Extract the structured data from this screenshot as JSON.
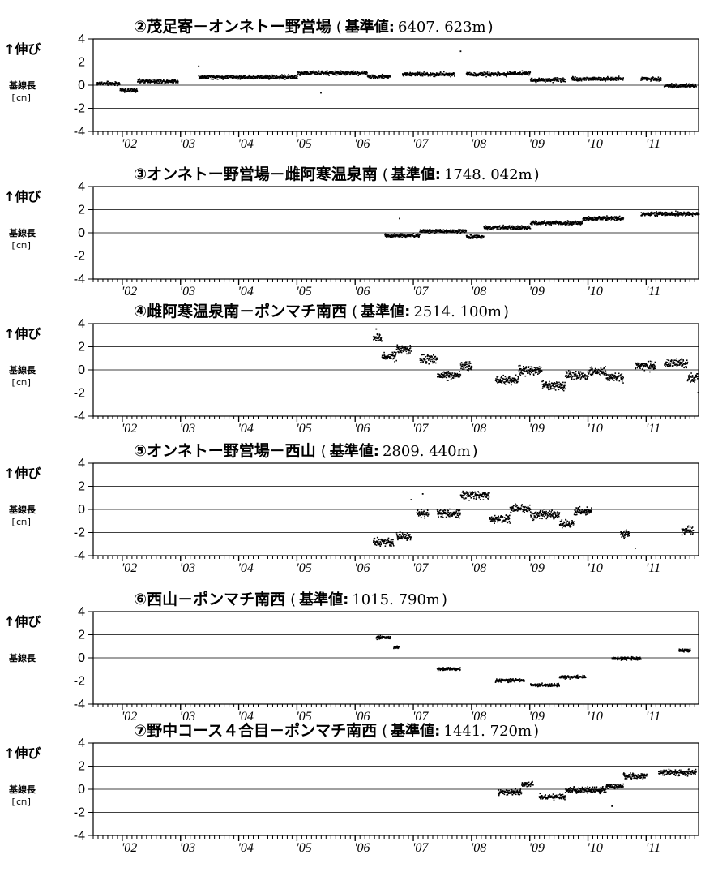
{
  "figure": {
    "y_label_top": "↑伸び",
    "y_label_mid": "基線長",
    "y_label_unit": "[cm]"
  },
  "chart_data": [
    {
      "type": "scatter",
      "title": "②茂足寄－オンネトー野営場",
      "reference_label": "基準値:",
      "reference_value": "6407. 623m",
      "show_unit": true,
      "xlim": [
        2001.5,
        2011.9
      ],
      "ylim": [
        -4,
        4
      ],
      "yticks": [
        4,
        2,
        0,
        -2,
        -4
      ],
      "xticklabels": [
        "'02",
        "'03",
        "'04",
        "'05",
        "'06",
        "'07",
        "'08",
        "'09",
        "'10",
        "'11"
      ],
      "grid": "horizontal",
      "series": [
        {
          "segments": [
            [
              2001.55,
              2001.95,
              0.2
            ],
            [
              2001.95,
              2002.25,
              -0.4
            ],
            [
              2002.25,
              2002.95,
              0.4
            ],
            [
              2003.3,
              2005.0,
              0.75
            ],
            [
              2005.0,
              2006.2,
              1.1
            ],
            [
              2006.2,
              2006.6,
              0.8
            ],
            [
              2006.8,
              2007.7,
              1.0
            ],
            [
              2007.9,
              2008.6,
              1.0
            ],
            [
              2008.6,
              2009.0,
              1.1
            ],
            [
              2009.0,
              2009.6,
              0.5
            ],
            [
              2009.7,
              2010.6,
              0.6
            ],
            [
              2010.9,
              2011.25,
              0.6
            ],
            [
              2011.3,
              2011.85,
              0.0
            ]
          ],
          "spread": 0.25,
          "outliers": [
            [
              2007.8,
              3.0
            ],
            [
              2003.3,
              1.7
            ],
            [
              2005.4,
              -0.6
            ]
          ]
        }
      ]
    },
    {
      "type": "scatter",
      "title": "③オンネトー野営場－雌阿寒温泉南",
      "reference_label": "基準値:",
      "reference_value": "1748. 042m",
      "show_unit": true,
      "xlim": [
        2001.5,
        2011.9
      ],
      "ylim": [
        -4,
        4
      ],
      "yticks": [
        4,
        2,
        0,
        -2,
        -4
      ],
      "xticklabels": [
        "'02",
        "'03",
        "'04",
        "'05",
        "'06",
        "'07",
        "'08",
        "'09",
        "'10",
        "'11"
      ],
      "grid": "horizontal",
      "series": [
        {
          "segments": [
            [
              2006.5,
              2007.1,
              -0.2
            ],
            [
              2007.1,
              2007.9,
              0.2
            ],
            [
              2007.9,
              2008.2,
              -0.3
            ],
            [
              2008.2,
              2009.0,
              0.5
            ],
            [
              2009.0,
              2009.9,
              0.9
            ],
            [
              2009.9,
              2010.6,
              1.3
            ],
            [
              2010.9,
              2011.9,
              1.7
            ]
          ],
          "spread": 0.25,
          "outliers": [
            [
              2006.75,
              1.3
            ]
          ]
        }
      ]
    },
    {
      "type": "scatter",
      "title": "④雌阿寒温泉南－ポンマチ南西",
      "reference_label": "基準値:",
      "reference_value": "2514. 100m",
      "show_unit": true,
      "xlim": [
        2001.5,
        2011.9
      ],
      "ylim": [
        -4,
        4
      ],
      "yticks": [
        4,
        2,
        0,
        -2,
        -4
      ],
      "xticklabels": [
        "'02",
        "'03",
        "'04",
        "'05",
        "'06",
        "'07",
        "'08",
        "'09",
        "'10",
        "'11"
      ],
      "grid": "horizontal",
      "series": [
        {
          "segments": [
            [
              2006.3,
              2006.45,
              2.8
            ],
            [
              2006.45,
              2006.7,
              1.2
            ],
            [
              2006.7,
              2006.95,
              1.8
            ],
            [
              2007.1,
              2007.4,
              1.0
            ],
            [
              2007.4,
              2007.8,
              -0.4
            ],
            [
              2007.8,
              2008.0,
              0.4
            ],
            [
              2008.4,
              2008.8,
              -0.8
            ],
            [
              2008.8,
              2009.2,
              0.0
            ],
            [
              2009.2,
              2009.6,
              -1.3
            ],
            [
              2009.6,
              2010.0,
              -0.4
            ],
            [
              2010.0,
              2010.3,
              -0.1
            ],
            [
              2010.3,
              2010.6,
              -0.6
            ],
            [
              2010.8,
              2011.15,
              0.4
            ],
            [
              2011.3,
              2011.7,
              0.6
            ],
            [
              2011.7,
              2011.88,
              -0.6
            ]
          ],
          "spread": 0.55,
          "outliers": [
            [
              2006.35,
              3.6
            ],
            [
              2011.88,
              -1.9
            ]
          ]
        }
      ]
    },
    {
      "type": "scatter",
      "title": "⑤オンネトー野営場－西山",
      "reference_label": "基準値:",
      "reference_value": "2809. 440m",
      "show_unit": true,
      "xlim": [
        2001.5,
        2011.9
      ],
      "ylim": [
        -4,
        4
      ],
      "yticks": [
        4,
        2,
        0,
        -2,
        -4
      ],
      "xticklabels": [
        "'02",
        "'03",
        "'04",
        "'05",
        "'06",
        "'07",
        "'08",
        "'09",
        "'10",
        "'11"
      ],
      "grid": "horizontal",
      "series": [
        {
          "segments": [
            [
              2006.3,
              2006.65,
              -2.8
            ],
            [
              2006.7,
              2006.95,
              -2.3
            ],
            [
              2007.05,
              2007.25,
              -0.3
            ],
            [
              2007.4,
              2007.8,
              -0.3
            ],
            [
              2007.8,
              2008.3,
              1.3
            ],
            [
              2008.3,
              2008.65,
              -0.8
            ],
            [
              2008.65,
              2009.0,
              0.1
            ],
            [
              2009.0,
              2009.5,
              -0.4
            ],
            [
              2009.5,
              2009.75,
              -1.2
            ],
            [
              2009.75,
              2010.05,
              -0.1
            ],
            [
              2010.55,
              2010.7,
              -2.1
            ],
            [
              2011.6,
              2011.8,
              -1.8
            ]
          ],
          "spread": 0.5,
          "outliers": [
            [
              2006.95,
              0.9
            ],
            [
              2007.15,
              1.4
            ],
            [
              2010.8,
              -3.3
            ]
          ]
        }
      ]
    },
    {
      "type": "scatter",
      "title": "⑥西山－ポンマチ南西",
      "reference_label": "基準値:",
      "reference_value": "1015. 790m",
      "show_unit": false,
      "xlim": [
        2001.5,
        2011.9
      ],
      "ylim": [
        -4,
        4
      ],
      "yticks": [
        4,
        2,
        0,
        -2,
        -4
      ],
      "xticklabels": [
        "'02",
        "'03",
        "'04",
        "'05",
        "'06",
        "'07",
        "'08",
        "'09",
        "'10",
        "'11"
      ],
      "grid": "horizontal",
      "series": [
        {
          "segments": [
            [
              2006.35,
              2006.6,
              1.8
            ],
            [
              2006.65,
              2006.75,
              1.0
            ],
            [
              2007.4,
              2007.8,
              -0.9
            ],
            [
              2008.4,
              2008.9,
              -1.9
            ],
            [
              2009.0,
              2009.5,
              -2.3
            ],
            [
              2009.5,
              2009.95,
              -1.6
            ],
            [
              2010.4,
              2010.9,
              0.0
            ],
            [
              2011.55,
              2011.75,
              0.7
            ]
          ],
          "spread": 0.2,
          "outliers": []
        }
      ]
    },
    {
      "type": "scatter",
      "title": "⑦野中コース４合目－ポンマチ南西",
      "reference_label": "基準値:",
      "reference_value": "1441. 720m",
      "show_unit": true,
      "xlim": [
        2001.5,
        2011.9
      ],
      "ylim": [
        -4,
        4
      ],
      "yticks": [
        4,
        2,
        0,
        -2,
        -4
      ],
      "xticklabels": [
        "'02",
        "'03",
        "'04",
        "'05",
        "'06",
        "'07",
        "'08",
        "'09",
        "'10",
        "'11"
      ],
      "grid": "horizontal",
      "series": [
        {
          "segments": [
            [
              2008.45,
              2008.85,
              -0.2
            ],
            [
              2008.85,
              2009.05,
              0.5
            ],
            [
              2009.15,
              2009.6,
              -0.6
            ],
            [
              2009.6,
              2010.3,
              0.0
            ],
            [
              2010.3,
              2010.6,
              0.3
            ],
            [
              2010.6,
              2011.0,
              1.2
            ],
            [
              2011.2,
              2011.85,
              1.5
            ]
          ],
          "spread": 0.35,
          "outliers": [
            [
              2010.4,
              -1.4
            ]
          ]
        }
      ]
    }
  ]
}
